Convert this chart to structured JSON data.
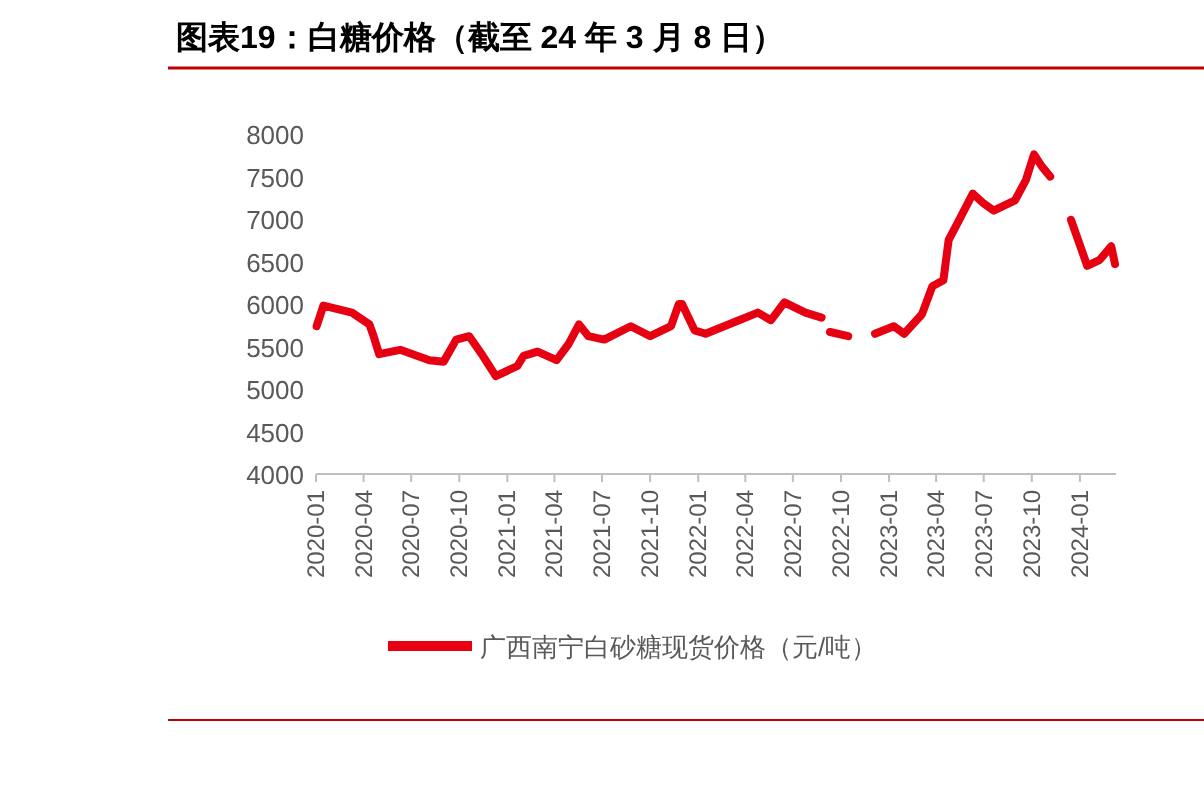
{
  "chart_data": {
    "type": "line",
    "title": "图表19：白糖价格（截至 24 年 3 月 8 日）",
    "series": [
      {
        "name": "广西南宁白砂糖现货价格（元/吨）",
        "color": "#e60012",
        "x": [
          "2020-01-02",
          "2020-01-15",
          "2020-03-10",
          "2020-04-12",
          "2020-04-20",
          "2020-05-01",
          "2020-06-10",
          "2020-08-05",
          "2020-09-01",
          "2020-09-25",
          "2020-10-20",
          "2020-11-15",
          "2020-12-10",
          "2021-01-20",
          "2021-02-01",
          "2021-02-28",
          "2021-04-05",
          "2021-04-28",
          "2021-05-18",
          "2021-06-05",
          "2021-07-05",
          "2021-08-25",
          "2021-10-01",
          "2021-11-10",
          "2021-11-25",
          "2021-12-01",
          "2021-12-25",
          "2022-01-15",
          "2022-03-20",
          "2022-04-25",
          "2022-05-20",
          "2022-06-15",
          "2022-07-25",
          "2022-08-25"
        ],
        "values": [
          5740,
          5980,
          5900,
          5760,
          5620,
          5410,
          5460,
          5340,
          5320,
          5580,
          5620,
          5390,
          5150,
          5270,
          5390,
          5440,
          5340,
          5530,
          5760,
          5620,
          5580,
          5740,
          5620,
          5740,
          6000,
          6000,
          5690,
          5650,
          5810,
          5900,
          5810,
          6020,
          5900,
          5840
        ]
      },
      {
        "color": "#e60012",
        "x": [
          "2022-09-10",
          "2022-10-15"
        ],
        "values": [
          5670,
          5620
        ]
      },
      {
        "color": "#e60012",
        "x": [
          "2022-12-05",
          "2023-01-10",
          "2023-01-30",
          "2023-03-05",
          "2023-03-25",
          "2023-04-15",
          "2023-04-25",
          "2023-05-15",
          "2023-06-10",
          "2023-07-01",
          "2023-07-20",
          "2023-08-30",
          "2023-09-20",
          "2023-10-05",
          "2023-10-20",
          "2023-11-05"
        ],
        "values": [
          5650,
          5740,
          5650,
          5880,
          6210,
          6280,
          6750,
          6990,
          7300,
          7180,
          7100,
          7220,
          7460,
          7760,
          7620,
          7500
        ]
      },
      {
        "color": "#e60012",
        "x": [
          "2023-12-15",
          "2024-01-15",
          "2024-02-08",
          "2024-03-01",
          "2024-03-08"
        ],
        "values": [
          6990,
          6450,
          6520,
          6680,
          6470
        ]
      }
    ],
    "xlim": [
      "2020-01-01",
      "2024-03-10"
    ],
    "xticks": [
      {
        "value": "2020-01",
        "label": "2020-01"
      },
      {
        "value": "2020-04",
        "label": "2020-04"
      },
      {
        "value": "2020-07",
        "label": "2020-07"
      },
      {
        "value": "2020-10",
        "label": "2020-10"
      },
      {
        "value": "2021-01",
        "label": "2021-01"
      },
      {
        "value": "2021-04",
        "label": "2021-04"
      },
      {
        "value": "2021-07",
        "label": "2021-07"
      },
      {
        "value": "2021-10",
        "label": "2021-10"
      },
      {
        "value": "2022-01",
        "label": "2022-01"
      },
      {
        "value": "2022-04",
        "label": "2022-04"
      },
      {
        "value": "2022-07",
        "label": "2022-07"
      },
      {
        "value": "2022-10",
        "label": "2022-10"
      },
      {
        "value": "2023-01",
        "label": "2023-01"
      },
      {
        "value": "2023-04",
        "label": "2023-04"
      },
      {
        "value": "2023-07",
        "label": "2023-07"
      },
      {
        "value": "2023-10",
        "label": "2023-10"
      },
      {
        "value": "2024-01",
        "label": "2024-01"
      }
    ],
    "ylim": [
      4000,
      8000
    ],
    "yticks": [
      4000,
      4500,
      5000,
      5500,
      6000,
      6500,
      7000,
      7500,
      8000
    ],
    "grid": false,
    "legend": "bottom",
    "marker": "none",
    "line_style": "solid"
  }
}
